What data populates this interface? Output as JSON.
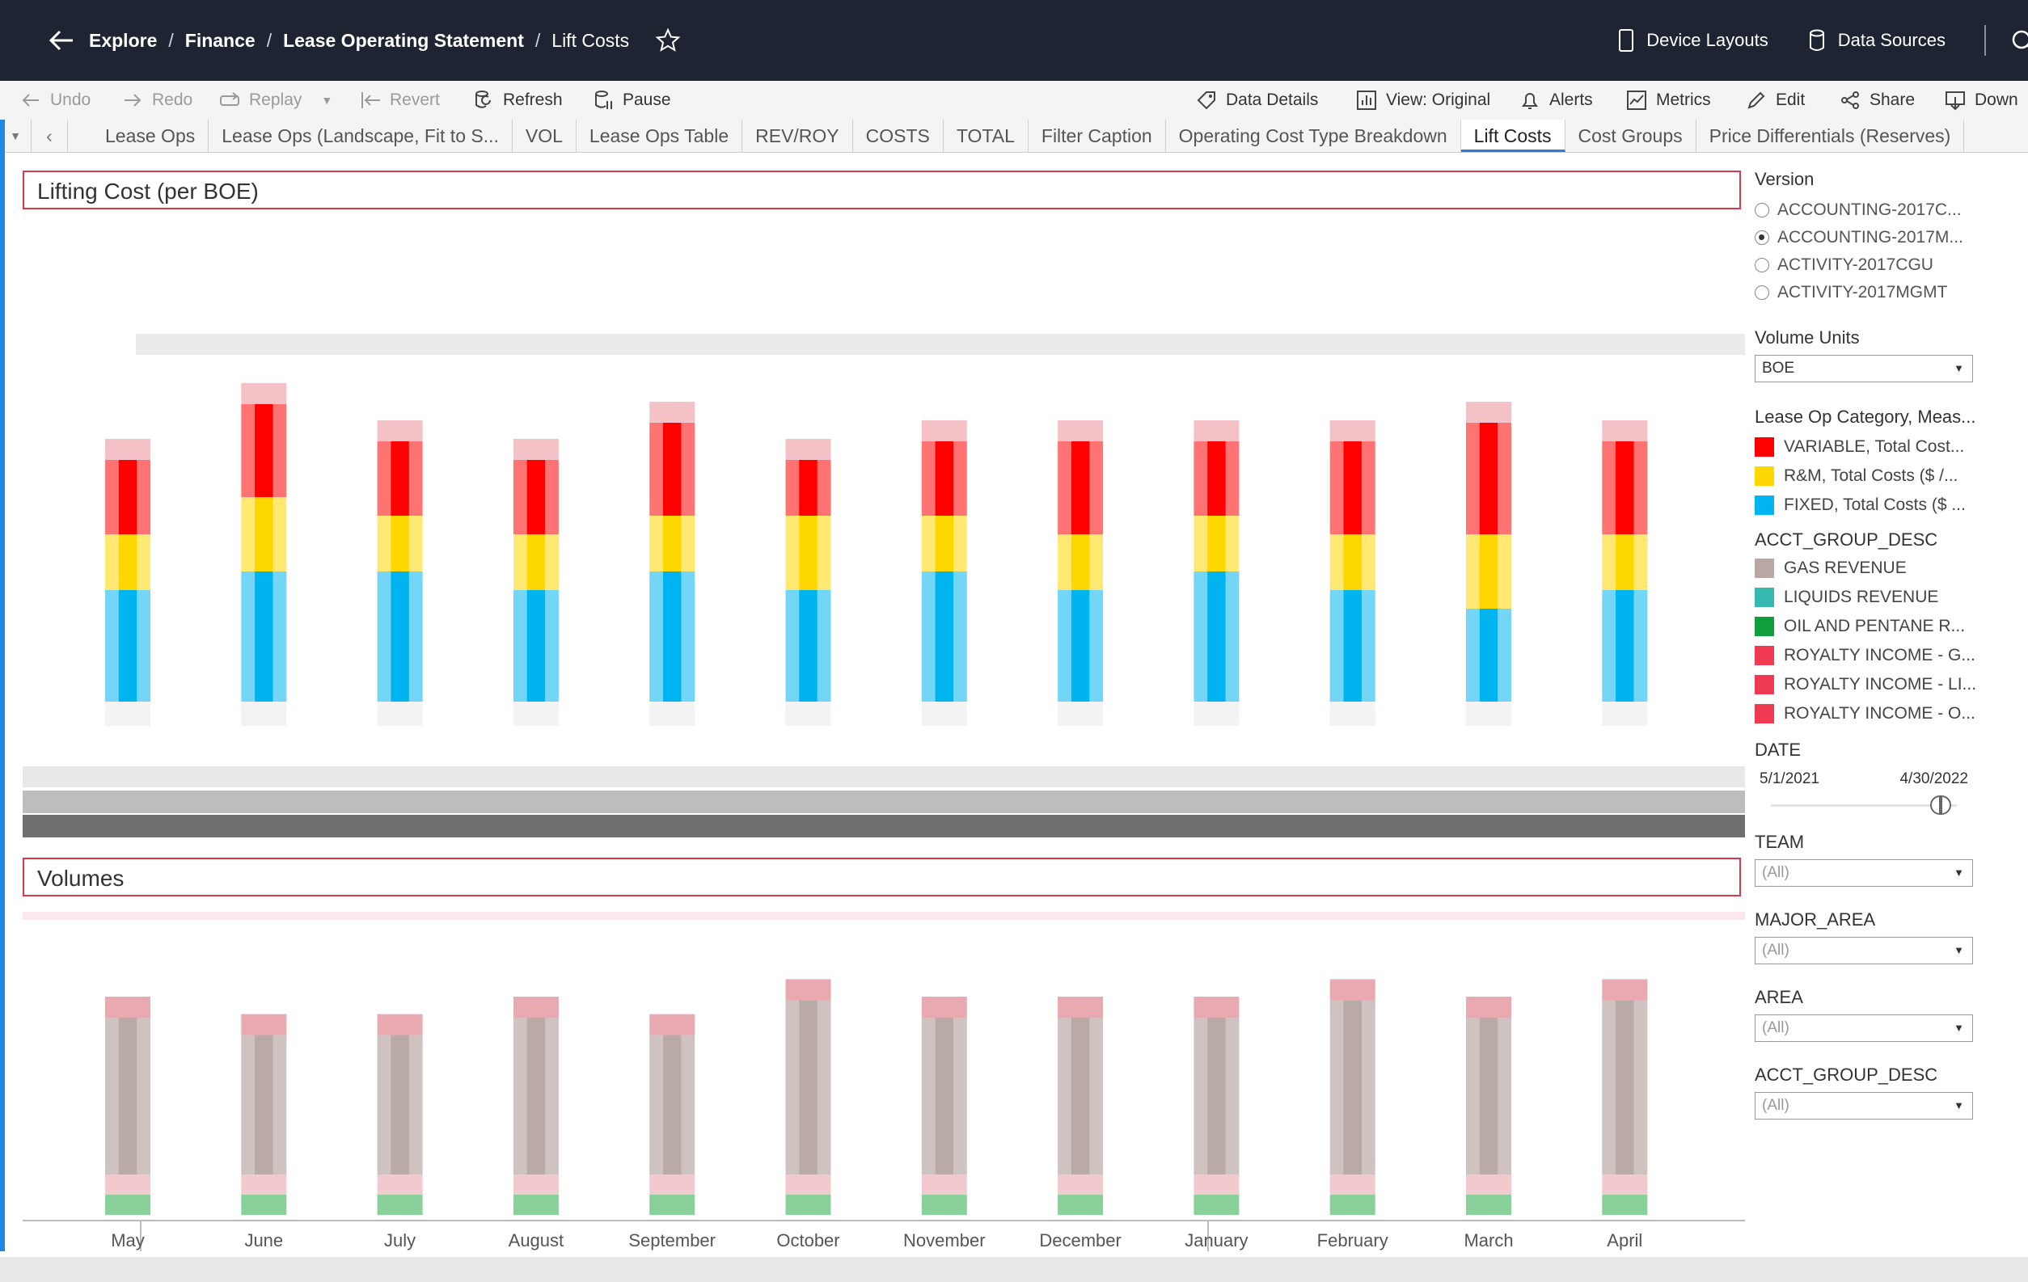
{
  "header": {
    "breadcrumbs": [
      "Explore",
      "Finance",
      "Lease Operating Statement"
    ],
    "current": "Lift Costs",
    "device_layouts": "Device Layouts",
    "data_sources": "Data Sources"
  },
  "toolbar": {
    "undo": "Undo",
    "redo": "Redo",
    "replay": "Replay",
    "revert": "Revert",
    "refresh": "Refresh",
    "pause": "Pause",
    "data_details": "Data Details",
    "view": "View: Original",
    "alerts": "Alerts",
    "metrics": "Metrics",
    "edit": "Edit",
    "share": "Share",
    "download": "Down"
  },
  "tabs": [
    "Lease Ops",
    "Lease Ops (Landscape, Fit to S...",
    "VOL",
    "Lease Ops Table",
    "REV/ROY",
    "COSTS",
    "TOTAL",
    "Filter Caption",
    "Operating Cost Type Breakdown",
    "Lift Costs",
    "Cost Groups",
    "Price Differentials (Reserves)"
  ],
  "active_tab": "Lift Costs",
  "panels": {
    "lifting_title": "Lifting Cost (per BOE)",
    "volumes_title": "Volumes"
  },
  "filters": {
    "version_label": "Version",
    "version_options": [
      "ACCOUNTING-2017C...",
      "ACCOUNTING-2017M...",
      "ACTIVITY-2017CGU",
      "ACTIVITY-2017MGMT"
    ],
    "version_selected": 1,
    "volume_units_label": "Volume Units",
    "volume_units_value": "BOE",
    "lease_op_label": "Lease Op Category, Meas...",
    "lease_op_items": [
      {
        "label": "VARIABLE, Total Cost...",
        "color": "#ff0000"
      },
      {
        "label": "R&M, Total Costs ($ /...",
        "color": "#ffd700"
      },
      {
        "label": "FIXED, Total Costs ($ ...",
        "color": "#00b4f0"
      }
    ],
    "acct_label": "ACCT_GROUP_DESC",
    "acct_items": [
      {
        "label": "GAS REVENUE",
        "color": "#b8a7a3"
      },
      {
        "label": "LIQUIDS REVENUE",
        "color": "#35b8b0"
      },
      {
        "label": "OIL AND PENTANE R...",
        "color": "#0f9e3c"
      },
      {
        "label": "ROYALTY INCOME - G...",
        "color": "#f03a52"
      },
      {
        "label": "ROYALTY INCOME - LI...",
        "color": "#f03a52"
      },
      {
        "label": "ROYALTY INCOME - O...",
        "color": "#f03a52"
      }
    ],
    "date_label": "DATE",
    "date_start": "5/1/2021",
    "date_end": "4/30/2022",
    "team_label": "TEAM",
    "team_value": "(All)",
    "major_area_label": "MAJOR_AREA",
    "major_area_value": "(All)",
    "area_label": "AREA",
    "area_value": "(All)",
    "acct_filter_label": "ACCT_GROUP_DESC",
    "acct_filter_value": "(All)"
  },
  "chart_data": [
    {
      "type": "bar",
      "title": "Lifting Cost (per BOE)",
      "categories": [
        "May",
        "June",
        "July",
        "August",
        "September",
        "October",
        "November",
        "December",
        "January",
        "February",
        "March",
        "April"
      ],
      "stack_colors": [
        "#00b4f0",
        "#ffd700",
        "#ff0000"
      ],
      "relative_segments": [
        {
          "fixed": 6,
          "rm": 3,
          "variable": 4
        },
        {
          "fixed": 7,
          "rm": 4,
          "variable": 5
        },
        {
          "fixed": 7,
          "rm": 3,
          "variable": 4
        },
        {
          "fixed": 6,
          "rm": 3,
          "variable": 4
        },
        {
          "fixed": 7,
          "rm": 3,
          "variable": 5
        },
        {
          "fixed": 6,
          "rm": 4,
          "variable": 3
        },
        {
          "fixed": 7,
          "rm": 3,
          "variable": 4
        },
        {
          "fixed": 6,
          "rm": 3,
          "variable": 5
        },
        {
          "fixed": 7,
          "rm": 3,
          "variable": 4
        },
        {
          "fixed": 6,
          "rm": 3,
          "variable": 5
        },
        {
          "fixed": 5,
          "rm": 4,
          "variable": 6
        },
        {
          "fixed": 6,
          "rm": 3,
          "variable": 5
        }
      ]
    },
    {
      "type": "bar",
      "title": "Volumes",
      "categories": [
        "May",
        "June",
        "July",
        "August",
        "September",
        "October",
        "November",
        "December",
        "January",
        "February",
        "March",
        "April"
      ],
      "relative_values": [
        100,
        92,
        92,
        100,
        92,
        108,
        100,
        100,
        100,
        108,
        100,
        108
      ],
      "stack_colors": [
        "#63c07a",
        "#b9aaa6",
        "#e8a9b0"
      ]
    }
  ]
}
